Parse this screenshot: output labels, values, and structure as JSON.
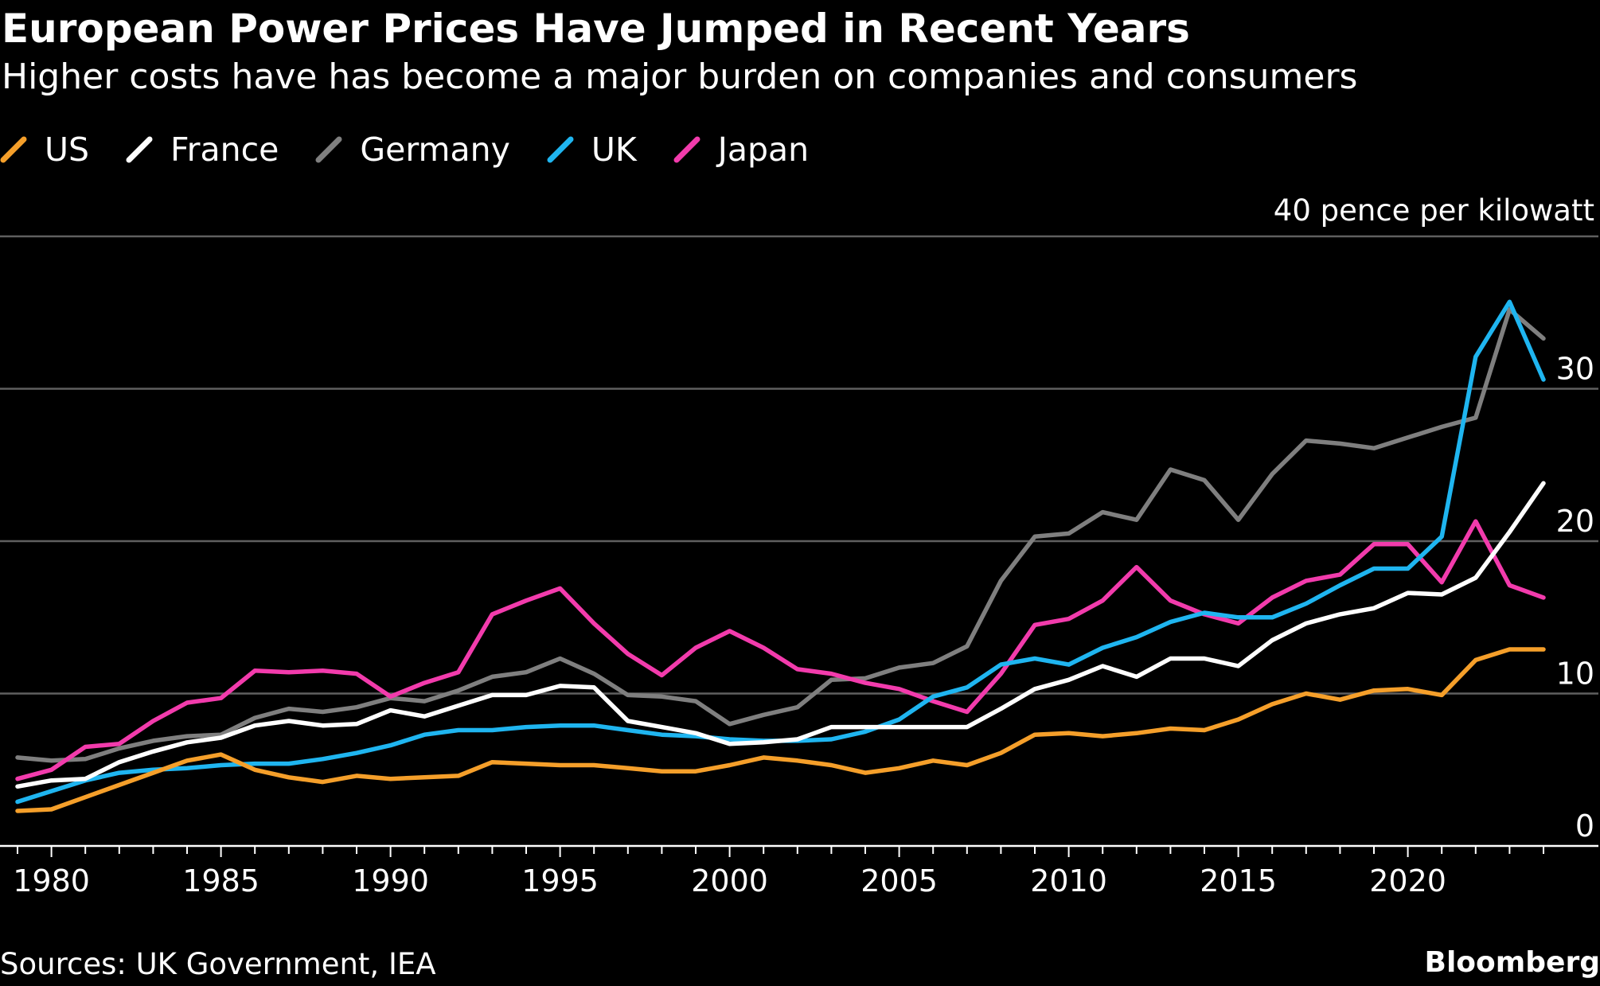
{
  "header": {
    "title": "European Power Prices Have Jumped in Recent Years",
    "subtitle": "Higher costs have has become a major burden on companies and consumers"
  },
  "footer": {
    "source": "Sources: UK Government, IEA",
    "brand": "Bloomberg"
  },
  "chart_data": {
    "type": "line",
    "title": "European Power Prices Have Jumped in Recent Years",
    "subtitle": "Higher costs have has become a major burden on companies and consumers",
    "unit_label": "40 pence per kilowatt",
    "xlabel": "",
    "ylabel": "pence per kilowatt",
    "ylim": [
      0,
      40
    ],
    "xlim": [
      1978.5,
      2025.5
    ],
    "y_ticks": [
      0,
      10,
      20,
      30
    ],
    "y_tick_labels": [
      "0",
      "10",
      "20",
      "30"
    ],
    "x_ticks": [
      1980,
      1985,
      1990,
      1995,
      2000,
      2005,
      2010,
      2015,
      2020
    ],
    "x_tick_labels": [
      "1980",
      "1985",
      "1990",
      "1995",
      "2000",
      "2005",
      "2010",
      "2015",
      "2020"
    ],
    "grid": "horizontal",
    "legend_position": "top-left",
    "x": [
      1979,
      1980,
      1981,
      1982,
      1983,
      1984,
      1985,
      1986,
      1987,
      1988,
      1989,
      1990,
      1991,
      1992,
      1993,
      1994,
      1995,
      1996,
      1997,
      1998,
      1999,
      2000,
      2001,
      2002,
      2003,
      2004,
      2005,
      2006,
      2007,
      2008,
      2009,
      2010,
      2011,
      2012,
      2013,
      2014,
      2015,
      2016,
      2017,
      2018,
      2019,
      2020,
      2021,
      2022,
      2023,
      2024
    ],
    "series": [
      {
        "name": "Germany",
        "color": "#7f7f7f",
        "values": [
          5.8,
          5.6,
          5.7,
          6.4,
          6.9,
          7.2,
          7.3,
          8.4,
          9.0,
          8.8,
          9.1,
          9.7,
          9.5,
          10.2,
          11.1,
          11.4,
          12.3,
          11.3,
          9.9,
          9.8,
          9.5,
          8.0,
          8.6,
          9.1,
          10.9,
          11.0,
          11.7,
          12.0,
          13.1,
          17.4,
          20.3,
          20.5,
          21.9,
          21.4,
          24.7,
          24.0,
          21.4,
          24.4,
          26.6,
          26.4,
          26.1,
          26.8,
          27.5,
          28.1,
          35.2,
          33.3
        ]
      },
      {
        "name": "Japan",
        "color": "#f23bac",
        "values": [
          4.4,
          5.0,
          6.5,
          6.7,
          8.2,
          9.4,
          9.7,
          11.5,
          11.4,
          11.5,
          11.3,
          9.8,
          10.7,
          11.4,
          15.2,
          16.1,
          16.9,
          14.6,
          12.6,
          11.2,
          13.0,
          14.1,
          13.0,
          11.6,
          11.3,
          10.7,
          10.3,
          9.5,
          8.8,
          11.3,
          14.5,
          14.9,
          16.1,
          18.3,
          16.1,
          15.2,
          14.6,
          16.3,
          17.4,
          17.8,
          19.8,
          19.8,
          17.3,
          21.3,
          17.1,
          16.3
        ]
      },
      {
        "name": "UK",
        "color": "#1fb5f0",
        "values": [
          2.9,
          3.6,
          4.3,
          4.8,
          5.0,
          5.1,
          5.3,
          5.4,
          5.4,
          5.7,
          6.1,
          6.6,
          7.3,
          7.6,
          7.6,
          7.8,
          7.9,
          7.9,
          7.6,
          7.3,
          7.2,
          7.0,
          6.9,
          6.9,
          7.0,
          7.5,
          8.3,
          9.8,
          10.4,
          11.9,
          12.3,
          11.9,
          13.0,
          13.7,
          14.7,
          15.3,
          15.0,
          15.0,
          15.9,
          17.1,
          18.2,
          18.2,
          20.3,
          32.1,
          35.7,
          30.6
        ]
      },
      {
        "name": "France",
        "color": "#ffffff",
        "values": [
          3.9,
          4.3,
          4.4,
          5.5,
          6.2,
          6.8,
          7.1,
          7.9,
          8.2,
          7.9,
          8.0,
          8.9,
          8.5,
          9.2,
          9.9,
          9.9,
          10.5,
          10.4,
          8.2,
          7.8,
          7.4,
          6.7,
          6.8,
          7.0,
          7.8,
          7.8,
          7.8,
          7.8,
          7.8,
          9.0,
          10.3,
          10.9,
          11.8,
          11.1,
          12.3,
          12.3,
          11.8,
          13.5,
          14.6,
          15.2,
          15.6,
          16.6,
          16.5,
          17.6,
          20.6,
          23.8
        ]
      },
      {
        "name": "US",
        "color": "#f59f2a",
        "values": [
          2.3,
          2.4,
          3.2,
          4.0,
          4.8,
          5.6,
          6.0,
          5.0,
          4.5,
          4.2,
          4.6,
          4.4,
          4.5,
          4.6,
          5.5,
          5.4,
          5.3,
          5.3,
          5.1,
          4.9,
          4.9,
          5.3,
          5.8,
          5.6,
          5.3,
          4.8,
          5.1,
          5.6,
          5.3,
          6.1,
          7.3,
          7.4,
          7.2,
          7.4,
          7.7,
          7.6,
          8.3,
          9.3,
          10.0,
          9.6,
          10.2,
          10.3,
          9.9,
          12.2,
          12.9,
          12.9
        ]
      }
    ],
    "legend_order": [
      "US",
      "France",
      "Germany",
      "UK",
      "Japan"
    ]
  }
}
